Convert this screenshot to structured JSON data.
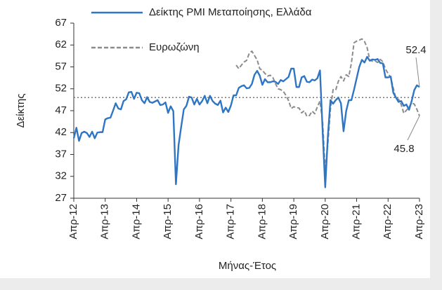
{
  "chart_data": {
    "type": "line",
    "y_label": "Δείκτης",
    "x_label": "Μήνας-Έτος",
    "categories": [
      "Απρ-12",
      null,
      null,
      null,
      null,
      null,
      null,
      null,
      null,
      null,
      null,
      null,
      "Απρ-13",
      null,
      null,
      null,
      null,
      null,
      null,
      null,
      null,
      null,
      null,
      null,
      "Απρ-14",
      null,
      null,
      null,
      null,
      null,
      null,
      null,
      null,
      null,
      null,
      null,
      "Απρ-15",
      null,
      null,
      null,
      null,
      null,
      null,
      null,
      null,
      null,
      null,
      null,
      "Απρ-16",
      null,
      null,
      null,
      null,
      null,
      null,
      null,
      null,
      null,
      null,
      null,
      "Απρ-17",
      null,
      null,
      null,
      null,
      null,
      null,
      null,
      null,
      null,
      null,
      null,
      "Απρ-18",
      null,
      null,
      null,
      null,
      null,
      null,
      null,
      null,
      null,
      null,
      null,
      "Απρ-19",
      null,
      null,
      null,
      null,
      null,
      null,
      null,
      null,
      null,
      null,
      null,
      "Απρ-20",
      null,
      null,
      null,
      null,
      null,
      null,
      null,
      null,
      null,
      null,
      null,
      "Απρ-21",
      null,
      null,
      null,
      null,
      null,
      null,
      null,
      null,
      null,
      null,
      null,
      "Απρ-22",
      null,
      null,
      null,
      null,
      null,
      null,
      null,
      null,
      null,
      null,
      null,
      "Απρ-23"
    ],
    "series": [
      {
        "name": "Δείκτης PMI Μεταποίησης, Ελλάδα",
        "color": "#2e75c4",
        "dash": false,
        "values": [
          40.7,
          43.1,
          40.1,
          41.9,
          42.2,
          41.9,
          41.0,
          42.2,
          40.7,
          42.0,
          42.1,
          42.1,
          45.0,
          45.3,
          45.4,
          47.0,
          48.7,
          47.5,
          47.3,
          49.2,
          49.6,
          51.2,
          51.3,
          49.7,
          51.1,
          51.0,
          49.4,
          48.7,
          50.1,
          49.0,
          48.8,
          49.1,
          49.4,
          48.3,
          48.4,
          48.9,
          46.5,
          48.0,
          46.9,
          30.2,
          39.1,
          43.3,
          47.3,
          48.1,
          50.2,
          50.0,
          48.4,
          49.7,
          48.4,
          49.2,
          50.4,
          48.7,
          50.4,
          49.2,
          48.6,
          48.3,
          49.3,
          46.6,
          47.7,
          46.7,
          48.2,
          50.5,
          50.5,
          52.2,
          52.6,
          52.8,
          52.1,
          52.2,
          53.1,
          55.2,
          56.1,
          55.0,
          52.9,
          54.2,
          53.5,
          53.5,
          53.7,
          53.6,
          53.1,
          54.0,
          53.7,
          54.2,
          54.7,
          56.6,
          56.6,
          52.4,
          52.4,
          54.6,
          54.9,
          53.6,
          53.5,
          54.1,
          53.9,
          54.4,
          56.2,
          42.5,
          29.5,
          41.1,
          49.4,
          48.6,
          49.4,
          50.0,
          48.7,
          42.3,
          46.9,
          49.4,
          49.4,
          51.8,
          54.4,
          57.0,
          58.6,
          58.0,
          59.3,
          58.4,
          58.7,
          58.6,
          58.8,
          57.9,
          57.8,
          54.6,
          54.6,
          54.8,
          51.1,
          50.0,
          49.0,
          49.2,
          48.1,
          48.4,
          47.2,
          49.2,
          51.7,
          52.8,
          52.4
        ]
      },
      {
        "name": "Ευρωζώνη",
        "color": "#8c8c8c",
        "dash": true,
        "values": [
          null,
          null,
          null,
          null,
          null,
          null,
          null,
          null,
          null,
          null,
          null,
          null,
          null,
          null,
          null,
          null,
          null,
          null,
          null,
          null,
          null,
          null,
          null,
          null,
          null,
          null,
          null,
          null,
          null,
          null,
          null,
          null,
          null,
          null,
          null,
          null,
          null,
          null,
          null,
          null,
          null,
          null,
          null,
          null,
          null,
          null,
          null,
          null,
          null,
          null,
          null,
          null,
          null,
          null,
          null,
          null,
          null,
          null,
          null,
          null,
          null,
          null,
          57.4,
          56.6,
          57.4,
          58.1,
          58.5,
          60.1,
          60.6,
          59.6,
          58.6,
          56.6,
          56.2,
          55.5,
          54.9,
          55.1,
          54.6,
          53.2,
          52.0,
          51.8,
          51.4,
          50.5,
          49.3,
          47.5,
          47.9,
          47.7,
          47.6,
          46.5,
          47.0,
          45.7,
          45.9,
          46.9,
          46.3,
          47.9,
          49.2,
          44.5,
          33.4,
          39.4,
          47.4,
          51.8,
          51.7,
          53.7,
          54.8,
          53.8,
          55.2,
          54.8,
          57.9,
          62.5,
          62.9,
          63.1,
          63.4,
          62.8,
          61.4,
          58.6,
          58.3,
          58.4,
          58.0,
          58.7,
          58.2,
          56.5,
          55.5,
          54.6,
          52.1,
          49.8,
          49.6,
          48.4,
          46.4,
          47.1,
          47.8,
          48.8,
          48.5,
          47.3,
          45.8
        ]
      }
    ],
    "ylim": [
      27,
      67
    ],
    "yticks": [
      27,
      32,
      37,
      42,
      47,
      52,
      57,
      62,
      67
    ],
    "reference_line": 50,
    "annotations": [
      52.4,
      45.8
    ]
  }
}
